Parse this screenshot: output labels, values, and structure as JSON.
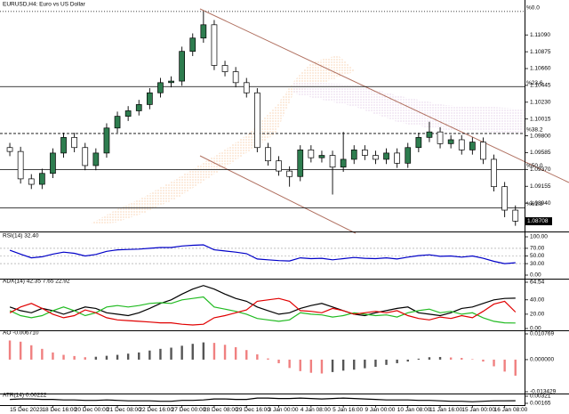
{
  "chart_data": [
    {
      "type": "candlestick",
      "title": "EURUSD,H4: Euro vs US Dollar",
      "categories": [
        null,
        "15 Dec 2023",
        null,
        null,
        "18 Dec 16:00",
        null,
        null,
        "20 Dec 00:00",
        null,
        null,
        "21 Dec 08:00",
        null,
        null,
        "22 Dec 16:00",
        null,
        null,
        "27 Dec 00:00",
        null,
        null,
        "28 Dec 08:00",
        null,
        null,
        "29 Dec 16:00",
        null,
        null,
        "3 Jan 00:00",
        null,
        null,
        "4 Jan 08:00",
        null,
        null,
        "5 Jan 16:00",
        null,
        null,
        "9 Jan 00:00",
        null,
        null,
        "10 Jan 08:00",
        null,
        null,
        "11 Jan 16:00",
        null,
        null,
        "15 Jan 00:00",
        null,
        null,
        "16 Jan 08:00",
        null
      ],
      "open": [
        1.0965,
        1.096,
        1.0925,
        1.0918,
        1.0932,
        1.0958,
        1.0978,
        1.0965,
        1.0942,
        1.0958,
        1.099,
        1.1005,
        1.1012,
        1.102,
        1.1035,
        1.1048,
        1.105,
        1.1088,
        1.1105,
        1.1122,
        1.107,
        1.1062,
        1.1048,
        1.1035,
        1.0965,
        1.0948,
        1.0935,
        1.0928,
        1.0962,
        1.0952,
        1.0955,
        1.094,
        1.095,
        1.0962,
        1.0955,
        1.095,
        1.0958,
        1.0945,
        1.0965,
        1.0978,
        1.0985,
        1.097,
        1.0975,
        1.0962,
        1.0972,
        1.095,
        1.0915,
        1.0885
      ],
      "high": [
        1.0971,
        1.0966,
        1.0931,
        1.0938,
        1.0964,
        1.0984,
        1.0984,
        1.0971,
        1.0964,
        1.0996,
        1.1011,
        1.1018,
        1.1026,
        1.1041,
        1.1054,
        1.1056,
        1.1094,
        1.1111,
        1.1139,
        1.1128,
        1.1076,
        1.1068,
        1.1054,
        1.1041,
        1.0971,
        1.0954,
        1.0941,
        1.0968,
        1.0968,
        1.0961,
        1.0961,
        1.0985,
        1.0968,
        1.0968,
        1.0961,
        1.0964,
        1.0964,
        1.0971,
        1.0984,
        1.0998,
        1.0991,
        1.0981,
        1.0981,
        1.0978,
        1.0978,
        1.0956,
        1.0921,
        1.0891
      ],
      "low": [
        1.0954,
        1.0919,
        1.0912,
        1.0912,
        1.0926,
        1.0952,
        1.0959,
        1.0936,
        1.0936,
        1.0952,
        1.0984,
        1.0999,
        1.1006,
        1.1014,
        1.1029,
        1.1042,
        1.1044,
        1.1082,
        1.1099,
        1.1064,
        1.1056,
        1.1042,
        1.1029,
        1.0959,
        1.0942,
        1.0929,
        1.0915,
        1.0922,
        1.0946,
        1.0946,
        1.0905,
        1.0934,
        1.0944,
        1.0949,
        1.0944,
        1.0944,
        1.0939,
        1.0939,
        1.0959,
        1.0972,
        1.0964,
        1.0964,
        1.0956,
        1.0956,
        1.0944,
        1.0909,
        1.0876,
        1.0865
      ],
      "close": [
        1.096,
        1.0925,
        1.0918,
        1.0932,
        1.0958,
        1.0978,
        1.0965,
        1.0942,
        1.0958,
        1.099,
        1.1005,
        1.1012,
        1.102,
        1.1035,
        1.1048,
        1.105,
        1.1088,
        1.1105,
        1.1122,
        1.107,
        1.1062,
        1.1048,
        1.1035,
        1.0965,
        1.0948,
        1.0935,
        1.0928,
        1.0962,
        1.0952,
        1.0955,
        1.094,
        1.095,
        1.0962,
        1.0955,
        1.095,
        1.0958,
        1.0945,
        1.0965,
        1.0978,
        1.0985,
        1.097,
        1.0975,
        1.0962,
        1.0972,
        1.095,
        1.0915,
        1.0885,
        1.0871
      ],
      "up_color": "#2e7d4f",
      "down_color": "#ffffff",
      "wick_color": "#000000",
      "ylim": [
        1.086,
        1.114
      ],
      "yticks": [
        {
          "value": 1.1109,
          "label": "1.11090"
        },
        1.10875,
        {
          "value": 1.1066,
          "label": "1.10660"
        },
        1.10445,
        {
          "value": 1.1023,
          "label": "1.10230"
        },
        1.10015,
        {
          "value": 1.098,
          "label": "1.09800"
        },
        1.09585,
        {
          "value": 1.0937,
          "label": "1.09370"
        },
        1.09155,
        {
          "value": 1.0894,
          "label": "1.08940"
        }
      ],
      "fib_levels": [
        {
          "label": "%0.0",
          "value": 1.1139,
          "style": "dotted"
        },
        {
          "label": "%23.6",
          "value": 1.1043,
          "style": "solid"
        },
        {
          "label": "%38.2",
          "value": 1.0983,
          "style": "dashed"
        },
        {
          "label": "%50.0",
          "value": 1.0937,
          "style": "solid"
        },
        {
          "label": "%61.8",
          "value": 1.0888,
          "style": "solid"
        }
      ],
      "last_price": 1.08708
    },
    {
      "type": "line",
      "title": "RSI(14) 32.40",
      "series": [
        {
          "color": "#0000c8",
          "values": [
            65,
            55,
            45,
            48,
            55,
            60,
            57,
            50,
            54,
            62,
            66,
            67,
            68,
            70,
            72,
            72,
            76,
            78,
            79,
            66,
            63,
            60,
            56,
            42,
            40,
            38,
            37,
            45,
            43,
            44,
            40,
            43,
            46,
            44,
            43,
            45,
            42,
            47,
            51,
            53,
            49,
            50,
            47,
            50,
            44,
            36,
            30,
            32.4
          ]
        }
      ],
      "ylim": [
        0,
        100
      ],
      "yticks": [
        {
          "value": 100,
          "label": "100.00"
        },
        {
          "value": 70,
          "label": "70.00"
        },
        {
          "value": 50,
          "label": "50.00"
        },
        {
          "value": 30,
          "label": "30.00"
        },
        {
          "value": 0,
          "label": "0.00"
        }
      ]
    },
    {
      "type": "line",
      "title": "ADX(14) 42.35 7.65 22.92",
      "series": [
        {
          "color": "#000000",
          "values": [
            30,
            25,
            22,
            28,
            25,
            20,
            25,
            30,
            28,
            22,
            20,
            18,
            22,
            28,
            35,
            40,
            48,
            55,
            60,
            55,
            48,
            42,
            38,
            30,
            25,
            20,
            22,
            28,
            32,
            35,
            30,
            25,
            20,
            18,
            22,
            25,
            28,
            30,
            22,
            20,
            18,
            22,
            28,
            30,
            35,
            40,
            42,
            42.35
          ]
        },
        {
          "color": "#22bb22",
          "values": [
            25,
            18,
            15,
            18,
            25,
            30,
            25,
            18,
            22,
            30,
            32,
            30,
            32,
            35,
            36,
            35,
            40,
            42,
            44,
            30,
            27,
            24,
            20,
            14,
            12,
            10,
            12,
            22,
            20,
            19,
            16,
            18,
            22,
            20,
            18,
            19,
            16,
            22,
            25,
            27,
            22,
            24,
            20,
            22,
            15,
            10,
            8,
            7.65
          ]
        },
        {
          "color": "#e00000",
          "values": [
            22,
            30,
            35,
            28,
            20,
            15,
            18,
            26,
            22,
            15,
            12,
            11,
            10,
            9,
            8,
            8,
            6,
            5,
            6,
            15,
            18,
            22,
            26,
            38,
            40,
            42,
            38,
            25,
            24,
            22,
            28,
            25,
            20,
            22,
            24,
            22,
            25,
            18,
            14,
            12,
            16,
            14,
            18,
            15,
            24,
            34,
            38,
            22.92
          ]
        }
      ],
      "ylim": [
        0,
        64.54
      ],
      "yticks": [
        64.54,
        {
          "value": 40,
          "label": "40.00"
        },
        {
          "value": 20,
          "label": "20.00"
        },
        {
          "value": 0,
          "label": "0.00"
        }
      ]
    },
    {
      "type": "bar",
      "title": "AO -0.006710",
      "values": [
        0.008,
        0.0075,
        0.006,
        0.0045,
        0.003,
        0.002,
        0.0015,
        0.001,
        0.0012,
        0.0016,
        0.002,
        0.0025,
        0.003,
        0.0038,
        0.0045,
        0.005,
        0.0058,
        0.0066,
        0.0072,
        0.007,
        0.0062,
        0.0052,
        0.004,
        0.0022,
        0.0005,
        -0.0015,
        -0.0035,
        -0.0048,
        -0.0055,
        -0.0058,
        -0.0052,
        -0.0046,
        -0.0042,
        -0.0036,
        -0.003,
        -0.0022,
        -0.0015,
        -0.0008,
        0.0004,
        0.001,
        0.0011,
        0.0009,
        0.0007,
        0.0002,
        -0.0008,
        -0.0028,
        -0.005,
        -0.00671
      ],
      "up_color": "#555555",
      "down_color": "#f08080",
      "ylim": [
        -0.013429,
        0.010769
      ],
      "yticks": [
        0.010769,
        {
          "value": 0,
          "label": "0.000000"
        },
        -0.013429
      ]
    },
    {
      "type": "line",
      "title": "ATR(14) 0.00222",
      "series": [
        {
          "color": "#000000",
          "values": [
            0.0025,
            0.0026,
            0.0026,
            0.0025,
            0.0025,
            0.0024,
            0.0024,
            0.0023,
            0.0023,
            0.0024,
            0.0023,
            0.0022,
            0.0022,
            0.0022,
            0.0021,
            0.0021,
            0.0023,
            0.0023,
            0.0024,
            0.0026,
            0.0026,
            0.0025,
            0.0025,
            0.0028,
            0.0028,
            0.0027,
            0.0027,
            0.0028,
            0.0027,
            0.0026,
            0.0027,
            0.0028,
            0.0027,
            0.0026,
            0.0025,
            0.0024,
            0.0024,
            0.0024,
            0.0023,
            0.0023,
            0.0022,
            0.0021,
            0.0021,
            0.002,
            0.0021,
            0.0022,
            0.0022,
            0.00222
          ]
        }
      ],
      "ylim": [
        0.00165,
        0.00321
      ],
      "yticks": [
        0.00321,
        0.00165
      ]
    }
  ]
}
